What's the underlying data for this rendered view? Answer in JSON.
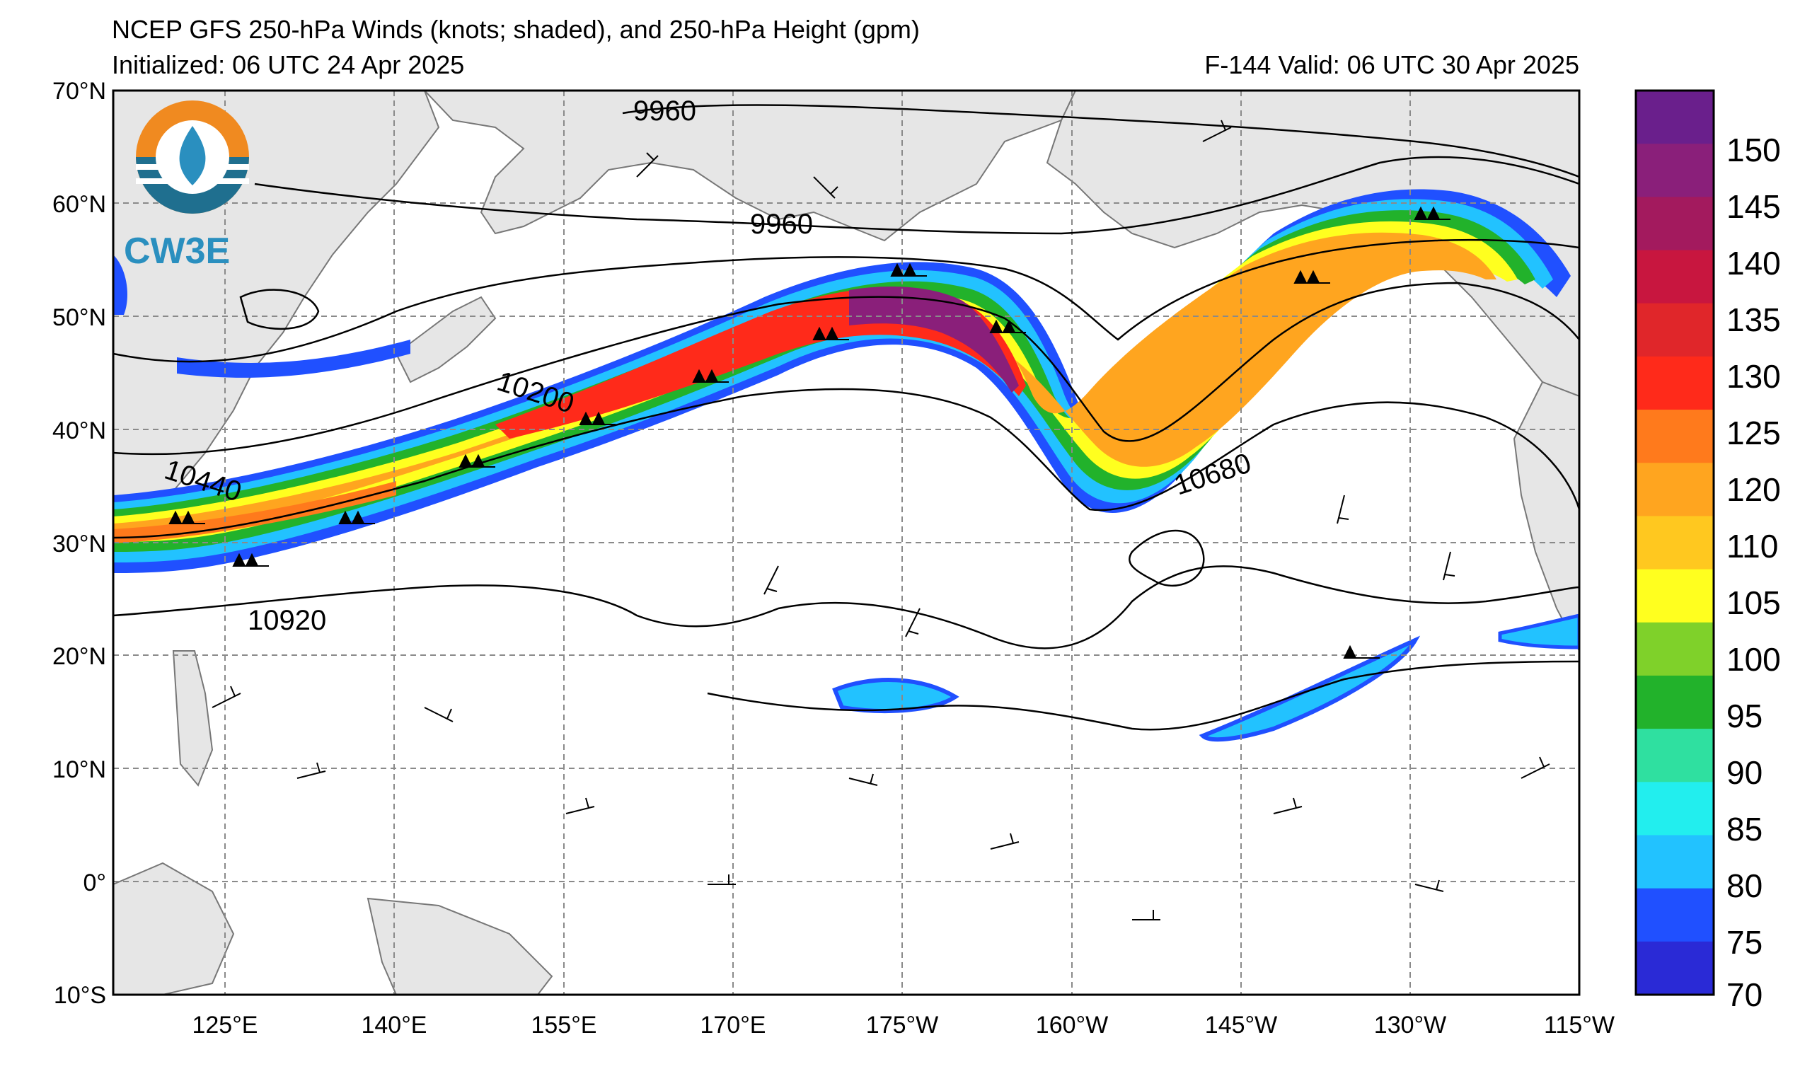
{
  "header": {
    "title": "NCEP GFS 250-hPa Winds (knots; shaded), and 250-hPa Height (gpm)",
    "initialized": "Initialized: 06 UTC 24 Apr 2025",
    "valid": "F-144  Valid: 06 UTC 30 Apr 2025"
  },
  "logo": {
    "text": "CW3E"
  },
  "map": {
    "lat_labels": [
      "70°N",
      "60°N",
      "50°N",
      "40°N",
      "30°N",
      "20°N",
      "10°N",
      "0°",
      "10°S"
    ],
    "lon_labels": [
      "125°E",
      "140°E",
      "155°E",
      "170°E",
      "175°W",
      "160°W",
      "145°W",
      "130°W",
      "115°W"
    ]
  },
  "contours": {
    "labels": [
      "9960",
      "9960",
      "10200",
      "10440",
      "10680",
      "10920"
    ]
  },
  "colorbar": {
    "ticks": [
      "150",
      "145",
      "140",
      "135",
      "130",
      "125",
      "120",
      "110",
      "105",
      "100",
      "95",
      "90",
      "85",
      "80",
      "75",
      "70"
    ],
    "colors": [
      "#6a1f8c",
      "#8a1f7a",
      "#a31a5e",
      "#c8163f",
      "#e0262a",
      "#ff2a1a",
      "#ff7a1c",
      "#ffa51f",
      "#ffc81f",
      "#ffff1f",
      "#7fd12a",
      "#22b22b",
      "#2fe0a0",
      "#22eeee",
      "#22c2ff",
      "#2050ff",
      "#2a2ad6"
    ]
  }
}
